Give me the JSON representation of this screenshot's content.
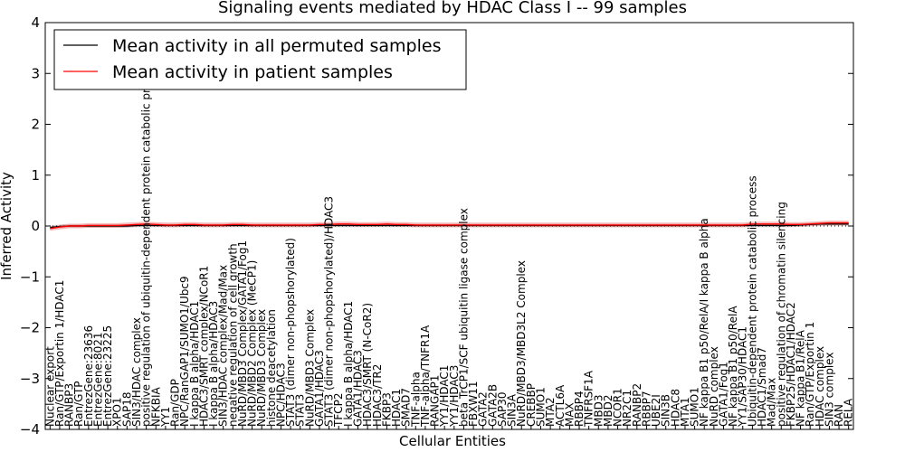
{
  "chart_data": {
    "type": "line",
    "title": "Signaling events mediated by HDAC Class I -- 99 samples",
    "xlabel": "Cellular Entities",
    "ylabel": "Inferred Activity",
    "ylim": [
      -4,
      4
    ],
    "yticks": [
      "4",
      "3",
      "2",
      "1",
      "0",
      "−1",
      "−2",
      "−3",
      "−4"
    ],
    "legend_position": "top-left",
    "categories": [
      "Nuclear export",
      "Ran/GTP/Exportin 1/HDAC1",
      "RANBP3",
      "Ran/GTP",
      "EntrezGene:23636",
      "EntrezGene:8021",
      "EntrezGene:23225",
      "XPO1",
      "SAP18",
      "SIN3/HDAC complex",
      "positive regulation of ubiquitin-dependent protein catabolic process",
      "NFKBIA",
      "YY1",
      "Ran/GDP",
      "NPC/RanGAP1/SUMO1/Ubc9",
      "I kappa B alpha/HDAC1",
      "HDAC3/SMRT complex/NCoR1",
      "I kappa B alpha/HDAC3",
      "SIN3/HDAC complex/Mad/Max",
      "negative regulation of cell growth",
      "NuRD/MBD3 Complex/GATA1/Fog1",
      "NuRD/MBD2 Complex (MeCP1)",
      "NuRD/MBD3 Complex",
      "histone deacetylation",
      "NPC/HDAC3",
      "STAT3 (dimer non-phopshorylated)",
      "STAT3",
      "NuRD/MBD3 Complex",
      "GATA1/HDAC3",
      "STAT3 (dimer non-phopshorylated)/HDAC3",
      "TFCP2",
      "I kappa B alpha/HDAC1",
      "GATA1/HDAC3",
      "HDAC3/SMRT (N-CoR2)",
      "HDAC3/TR2",
      "FKBP3",
      "HDAC1",
      "SMAD7",
      "TNF-alpha",
      "TNF-alpha/TNFR1A",
      "RANGAP1",
      "YY1/HDAC1",
      "YY1/HDAC3",
      "beta TrCP1/SCF ubiquitin ligase complex",
      "FBXW11",
      "GATA2",
      "GATA2B",
      "SAP30",
      "SIN3A",
      "NuRD/MBD3/MBD3L2 Complex",
      "CREBBP",
      "SUMO1",
      "MTA2",
      "ACTL6A",
      "MAX",
      "RBBP4",
      "TNFRSF1A",
      "MBD3",
      "MBD2",
      "NCOR1",
      "NR2C1",
      "RANBP2",
      "RBBP7",
      "UBE2I",
      "SIN3B",
      "HDAC8",
      "MTA1",
      "SUMO1",
      "NF kappa B1 p50/RelA/I kappa B alpha",
      "NuRD complex",
      "GATA1/Fog1",
      "NF kappa B1 p50/RelA",
      "YY1/SAP30/HDAC1",
      "Ubiquitin-dependent protein catabolic process",
      "HDAC1/Smad7",
      "Mad/Max",
      "positive regulation of chromatin silencing",
      "FKBP25/HDAC1/HDAC2",
      "NF kappa B1/RelA",
      "Ran/GTP/Exportin 1",
      "HDAC complex",
      "SIN3 complex",
      "RAN",
      "RELA"
    ],
    "series": [
      {
        "name": "Mean activity in all permuted samples",
        "color": "#000000",
        "values": [
          -0.03,
          -0.01,
          0,
          0,
          0,
          0,
          0,
          0,
          0,
          0.01,
          0.01,
          0.01,
          0.01,
          0.01,
          0.01,
          0.01,
          0.01,
          0.01,
          0.01,
          0.01,
          0.01,
          0.01,
          0.01,
          0.01,
          0.01,
          0.01,
          0.01,
          0.01,
          0.01,
          0.01,
          0.01,
          0.01,
          0.01,
          0.01,
          0.01,
          0.01,
          0.01,
          0.01,
          0.01,
          0.01,
          0.01,
          0.01,
          0.01,
          0.01,
          0.01,
          0.01,
          0.01,
          0.01,
          0.01,
          0.01,
          0.01,
          0.01,
          0.01,
          0.01,
          0.01,
          0.01,
          0.01,
          0.01,
          0.01,
          0.01,
          0.01,
          0.01,
          0.01,
          0.01,
          0.01,
          0.01,
          0.01,
          0.01,
          0.01,
          0.01,
          0.01,
          0.01,
          0.01,
          0.01,
          0.01,
          0.01,
          0.01,
          0.01,
          0.02,
          0.03,
          0.04,
          0.04,
          0.04,
          0.04
        ]
      },
      {
        "name": "Mean activity in patient samples",
        "color": "#ff0000",
        "values": [
          -0.05,
          -0.02,
          0,
          0,
          0.01,
          0.01,
          0.01,
          0.01,
          0.02,
          0.03,
          0.04,
          0.03,
          0.02,
          0.02,
          0.03,
          0.03,
          0.02,
          0.02,
          0.02,
          0.03,
          0.03,
          0.02,
          0.02,
          0.02,
          0.02,
          0.02,
          0.02,
          0.02,
          0.03,
          0.03,
          0.04,
          0.04,
          0.03,
          0.03,
          0.03,
          0.04,
          0.03,
          0.03,
          0.02,
          0.02,
          0.02,
          0.02,
          0.02,
          0.02,
          0.02,
          0.02,
          0.02,
          0.02,
          0.02,
          0.02,
          0.02,
          0.02,
          0.02,
          0.02,
          0.02,
          0.02,
          0.02,
          0.02,
          0.02,
          0.02,
          0.02,
          0.02,
          0.02,
          0.02,
          0.02,
          0.02,
          0.02,
          0.02,
          0.02,
          0.02,
          0.02,
          0.02,
          0.02,
          0.04,
          0.04,
          0.04,
          0.04,
          0.03,
          0.03,
          0.04,
          0.05,
          0.06,
          0.06,
          0.06
        ]
      }
    ]
  }
}
